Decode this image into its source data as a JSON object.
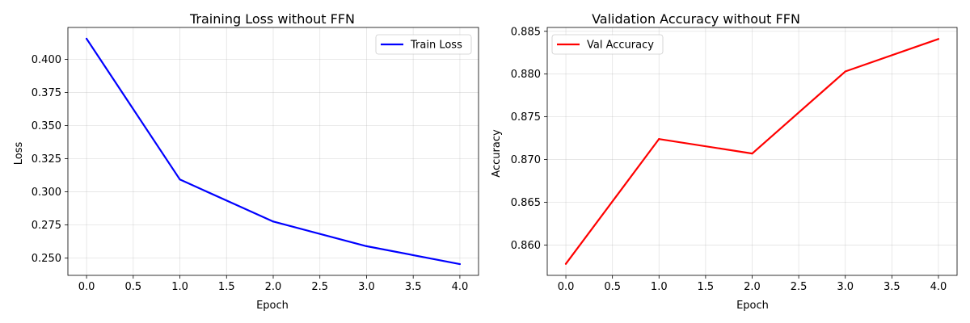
{
  "chart_data": [
    {
      "type": "line",
      "title": "Training Loss without FFN",
      "xlabel": "Epoch",
      "ylabel": "Loss",
      "xlim": [
        -0.2,
        4.2
      ],
      "ylim": [
        0.237,
        0.424
      ],
      "xticks": [
        0.0,
        0.5,
        1.0,
        1.5,
        2.0,
        2.5,
        3.0,
        3.5,
        4.0
      ],
      "xtick_labels": [
        "0.0",
        "0.5",
        "1.0",
        "1.5",
        "2.0",
        "2.5",
        "3.0",
        "3.5",
        "4.0"
      ],
      "yticks": [
        0.25,
        0.275,
        0.3,
        0.325,
        0.35,
        0.375,
        0.4
      ],
      "ytick_labels": [
        "0.250",
        "0.275",
        "0.300",
        "0.325",
        "0.350",
        "0.375",
        "0.400"
      ],
      "grid": true,
      "legend_position": "top-right",
      "series": [
        {
          "name": "Train Loss",
          "color": "#0000ff",
          "x": [
            0,
            1,
            2,
            3,
            4
          ],
          "y": [
            0.4155,
            0.3093,
            0.2776,
            0.259,
            0.2455
          ]
        }
      ]
    },
    {
      "type": "line",
      "title": "Validation Accuracy without FFN",
      "xlabel": "Epoch",
      "ylabel": "Accuracy",
      "xlim": [
        -0.2,
        4.2
      ],
      "ylim": [
        0.85645,
        0.88545
      ],
      "xticks": [
        0.0,
        0.5,
        1.0,
        1.5,
        2.0,
        2.5,
        3.0,
        3.5,
        4.0
      ],
      "xtick_labels": [
        "0.0",
        "0.5",
        "1.0",
        "1.5",
        "2.0",
        "2.5",
        "3.0",
        "3.5",
        "4.0"
      ],
      "yticks": [
        0.86,
        0.865,
        0.87,
        0.875,
        0.88,
        0.885
      ],
      "ytick_labels": [
        "0.860",
        "0.865",
        "0.870",
        "0.875",
        "0.880",
        "0.885"
      ],
      "grid": true,
      "legend_position": "top-left",
      "series": [
        {
          "name": "Val Accuracy",
          "color": "#ff0000",
          "x": [
            0,
            1,
            2,
            3,
            4
          ],
          "y": [
            0.8578,
            0.8724,
            0.8707,
            0.8803,
            0.8841
          ]
        }
      ]
    }
  ]
}
